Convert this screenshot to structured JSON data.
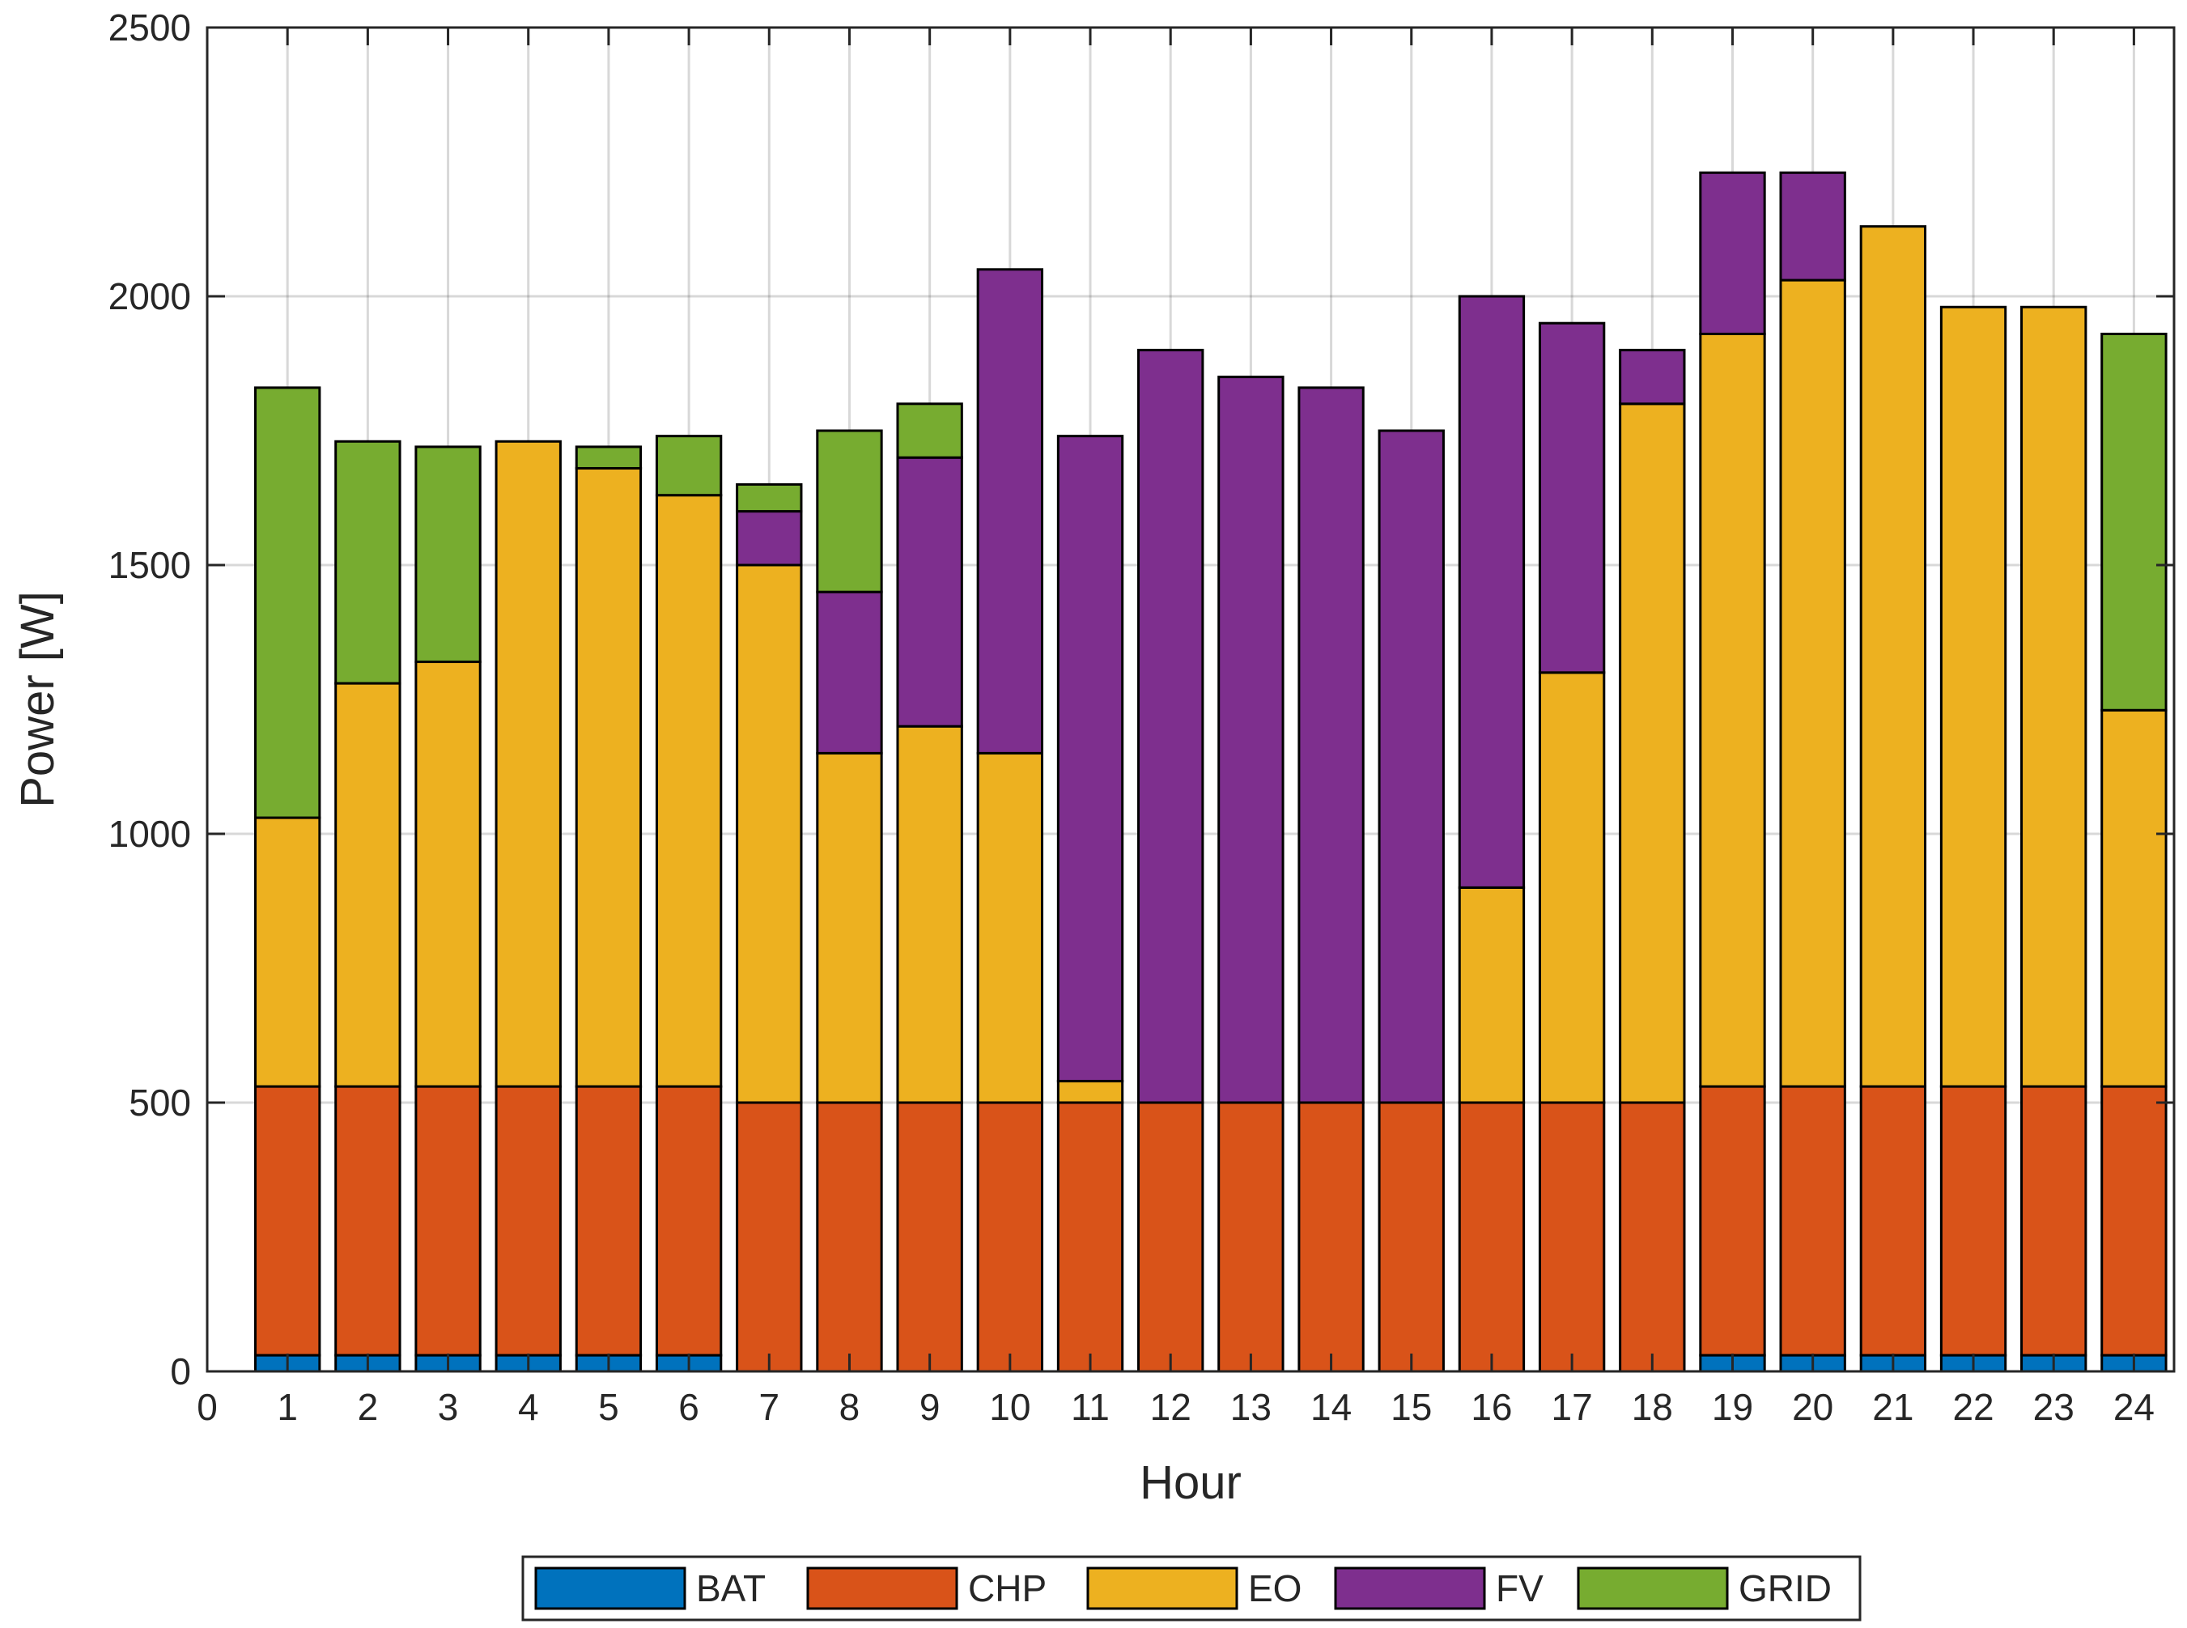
{
  "chart_data": {
    "type": "bar",
    "stacked": true,
    "title": "",
    "xlabel": "Hour",
    "ylabel": "Power [W]",
    "xlim": [
      0,
      24.5
    ],
    "ylim": [
      0,
      2500
    ],
    "grid": true,
    "legend_position": "bottom-center",
    "x_ticks": [
      0,
      1,
      2,
      3,
      4,
      5,
      6,
      7,
      8,
      9,
      10,
      11,
      12,
      13,
      14,
      15,
      16,
      17,
      18,
      19,
      20,
      21,
      22,
      23,
      24
    ],
    "y_ticks": [
      0,
      500,
      1000,
      1500,
      2000,
      2500
    ],
    "categories": [
      1,
      2,
      3,
      4,
      5,
      6,
      7,
      8,
      9,
      10,
      11,
      12,
      13,
      14,
      15,
      16,
      17,
      18,
      19,
      20,
      21,
      22,
      23,
      24
    ],
    "series": [
      {
        "name": "BAT",
        "color": "#0072BD",
        "values": [
          30,
          30,
          30,
          30,
          30,
          30,
          0,
          0,
          0,
          0,
          0,
          0,
          0,
          0,
          0,
          0,
          0,
          0,
          30,
          30,
          30,
          30,
          30,
          30
        ]
      },
      {
        "name": "CHP",
        "color": "#D95319",
        "values": [
          500,
          500,
          500,
          500,
          500,
          500,
          500,
          500,
          500,
          500,
          500,
          500,
          500,
          500,
          500,
          500,
          500,
          500,
          500,
          500,
          500,
          500,
          500,
          500
        ]
      },
      {
        "name": "EO",
        "color": "#EDB120",
        "values": [
          500,
          750,
          790,
          1200,
          1150,
          1100,
          1000,
          650,
          700,
          650,
          40,
          0,
          0,
          0,
          0,
          400,
          800,
          1300,
          1400,
          1500,
          1600,
          1450,
          1450,
          700
        ]
      },
      {
        "name": "FV",
        "color": "#7E2F8E",
        "values": [
          0,
          0,
          0,
          0,
          0,
          0,
          100,
          300,
          500,
          900,
          1200,
          1400,
          1350,
          1330,
          1250,
          1100,
          650,
          100,
          300,
          200,
          0,
          0,
          0,
          0
        ]
      },
      {
        "name": "GRID",
        "color": "#77AC30",
        "values": [
          800,
          450,
          400,
          0,
          40,
          110,
          50,
          300,
          100,
          0,
          0,
          0,
          0,
          0,
          0,
          0,
          0,
          0,
          0,
          0,
          0,
          0,
          0,
          700
        ]
      }
    ]
  }
}
